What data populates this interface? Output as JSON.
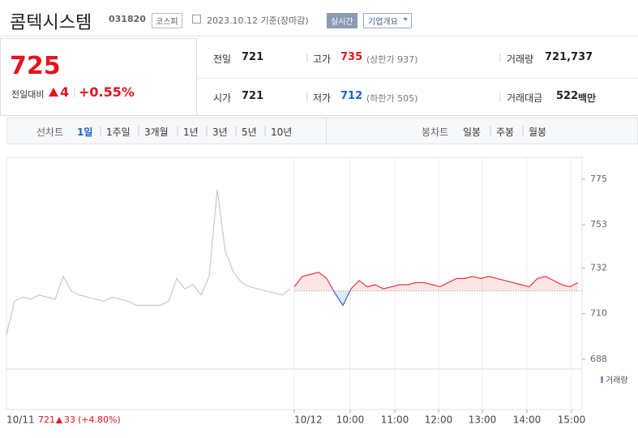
{
  "header": {
    "name": "콤텍시스템",
    "code": "031820",
    "market": "코스피",
    "date": "2023.10.12 기준(장마감)",
    "realtime_button": "실시간",
    "company_button": "기업개요"
  },
  "price": {
    "current": "725",
    "change_label": "전일대비",
    "change": "4",
    "change_rate": "+0.55%"
  },
  "stats": [
    {
      "label": "전일",
      "value": "721"
    },
    {
      "label": "고가",
      "value": "735",
      "note": "(상한가 937)"
    },
    {
      "label": "거래량",
      "value": "721,737"
    },
    {
      "label": "시가",
      "value": "721"
    },
    {
      "label": "저가",
      "value": "712",
      "note": "(하한가 505)"
    },
    {
      "label": "거래대금",
      "value": "522",
      "unit": "백만"
    }
  ],
  "tabs": {
    "line_label": "선차트",
    "line_periods": [
      "1일",
      "1주일",
      "3개월",
      "1년",
      "3년",
      "5년",
      "10년"
    ],
    "selected": 0,
    "candle_label": "봉차트",
    "candle_periods": [
      "일봉",
      "주봉",
      "월봉"
    ]
  },
  "chart_data": {
    "type": "line",
    "series": [
      {
        "color": "#c8c8c8",
        "values": [
          700,
          716,
          718,
          717,
          719,
          718,
          717,
          728,
          721,
          719,
          718,
          717,
          716,
          718,
          717,
          716,
          714,
          714,
          714,
          714,
          716,
          727,
          722,
          724,
          719,
          728,
          770,
          740,
          730,
          725,
          723,
          722,
          721,
          720,
          719,
          722
        ]
      },
      {
        "color": "#f0313b",
        "down_color": "#2b6ad8",
        "values": [
          723,
          728,
          729,
          730,
          727,
          720,
          714,
          722,
          726,
          723,
          724,
          722,
          723,
          724,
          724,
          725,
          725,
          724,
          723,
          725,
          727,
          727,
          728,
          727,
          728,
          727,
          726,
          725,
          724,
          723,
          727,
          728,
          726,
          724,
          723,
          725
        ]
      }
    ],
    "base": 721,
    "ylim": [
      684,
      784
    ],
    "yticks": [
      775,
      753,
      732,
      710,
      688
    ],
    "x_labels": [
      "10/12",
      "10:00",
      "11:00",
      "12:00",
      "13:00",
      "14:00",
      "15:00"
    ],
    "volume_legend": "거래량",
    "summary": {
      "date": "10/11",
      "price": "721",
      "change": "33",
      "change_rate": "(+4.80%)"
    }
  }
}
